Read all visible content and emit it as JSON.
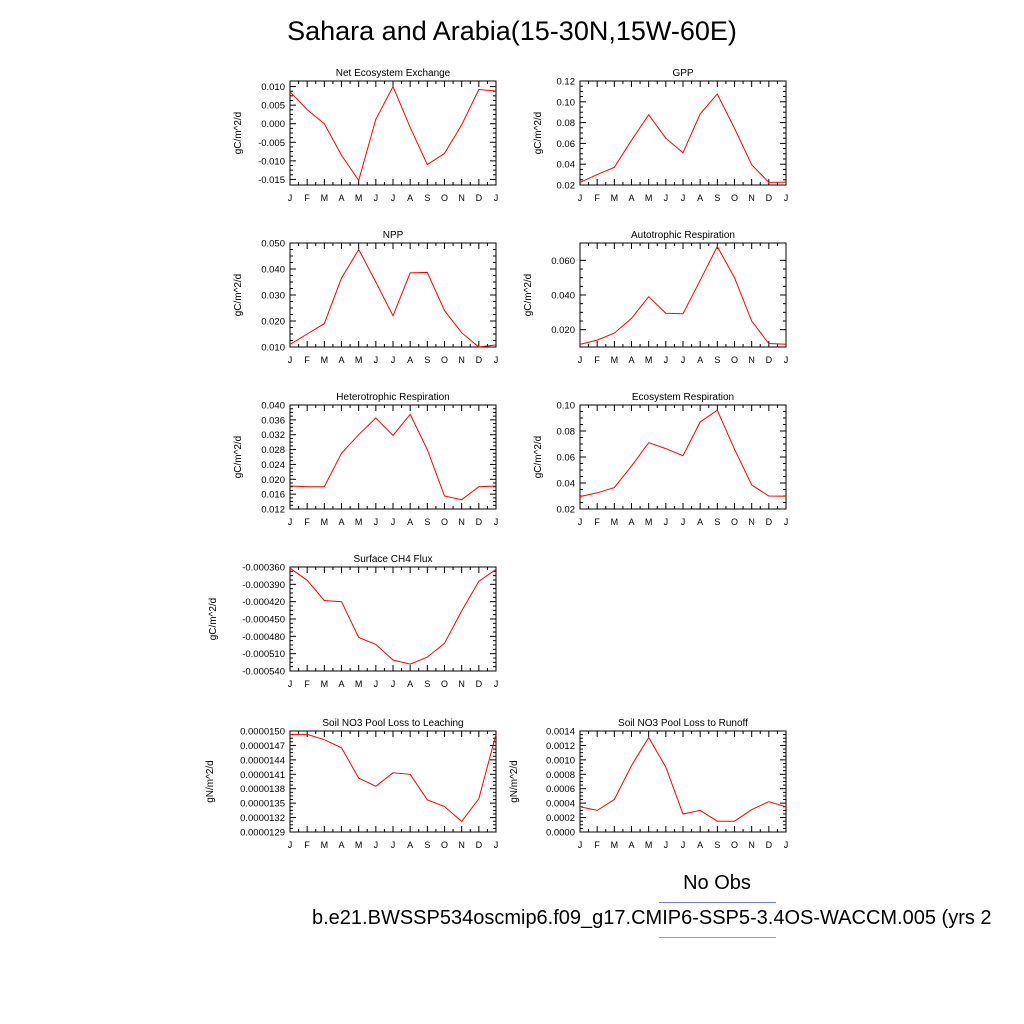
{
  "title": "Sahara and Arabia(15-30N,15W-60E)",
  "colors": {
    "series": "#ff0000",
    "axes": "#000000",
    "obs_line": "#7a7ae6",
    "model_line": "#f07a7a"
  },
  "legend": {
    "obs_label": "No Obs",
    "model_label": "b.e21.BWSSP534oscmip6.f09_g17.CMIP6-SSP5-3.4OS-WACCM.005 (yrs 2"
  },
  "chart_data": [
    {
      "type": "line",
      "title": "Net Ecosystem Exchange",
      "ylabel": "gC/m^2/d",
      "x": [
        "J",
        "F",
        "M",
        "A",
        "M",
        "J",
        "J",
        "A",
        "S",
        "O",
        "N",
        "D",
        "J"
      ],
      "ylim": [
        -0.0165,
        0.0115
      ],
      "yticks": [
        "0.010",
        "0.005",
        "0.000",
        "-0.005",
        "-0.010",
        "-0.015"
      ],
      "ytick_values": [
        0.01,
        0.005,
        0.0,
        -0.005,
        -0.01,
        -0.015
      ],
      "series": [
        {
          "values": [
            0.0086,
            0.0038,
            0.0,
            -0.0085,
            -0.0153,
            0.0012,
            0.01,
            -0.001,
            -0.011,
            -0.008,
            -0.0003,
            0.0092,
            0.0088
          ]
        }
      ]
    },
    {
      "type": "line",
      "title": "GPP",
      "ylabel": "gC/m^2/d",
      "x": [
        "J",
        "F",
        "M",
        "A",
        "M",
        "J",
        "J",
        "A",
        "S",
        "O",
        "N",
        "D",
        "J"
      ],
      "ylim": [
        0.02,
        0.12
      ],
      "yticks": [
        "0.12",
        "0.10",
        "0.08",
        "0.06",
        "0.04",
        "0.02"
      ],
      "ytick_values": [
        0.12,
        0.1,
        0.08,
        0.06,
        0.04,
        0.02
      ],
      "series": [
        {
          "values": [
            0.0225,
            0.03,
            0.037,
            0.063,
            0.0875,
            0.065,
            0.051,
            0.0885,
            0.1075,
            0.0745,
            0.0395,
            0.0225,
            0.0228
          ]
        }
      ]
    },
    {
      "type": "line",
      "title": "NPP",
      "ylabel": "gC/m^2/d",
      "x": [
        "J",
        "F",
        "M",
        "A",
        "M",
        "J",
        "J",
        "A",
        "S",
        "O",
        "N",
        "D",
        "J"
      ],
      "ylim": [
        0.01,
        0.05
      ],
      "yticks": [
        "0.050",
        "0.040",
        "0.030",
        "0.020",
        "0.010"
      ],
      "ytick_values": [
        0.05,
        0.04,
        0.03,
        0.02,
        0.01
      ],
      "series": [
        {
          "values": [
            0.011,
            0.015,
            0.019,
            0.0365,
            0.0475,
            0.035,
            0.022,
            0.0385,
            0.0387,
            0.024,
            0.0155,
            0.01,
            0.0108
          ]
        }
      ]
    },
    {
      "type": "line",
      "title": "Autotrophic Respiration",
      "ylabel": "gC/m^2/d",
      "x": [
        "J",
        "F",
        "M",
        "A",
        "M",
        "J",
        "J",
        "A",
        "S",
        "O",
        "N",
        "D",
        "J"
      ],
      "ylim": [
        0.01,
        0.07
      ],
      "yticks": [
        "0.060",
        "0.040",
        "0.020"
      ],
      "ytick_values": [
        0.06,
        0.04,
        0.02
      ],
      "series": [
        {
          "values": [
            0.0115,
            0.014,
            0.018,
            0.0265,
            0.039,
            0.0295,
            0.0292,
            0.0485,
            0.068,
            0.05,
            0.025,
            0.012,
            0.0116
          ]
        }
      ]
    },
    {
      "type": "line",
      "title": "Heterotrophic Respiration",
      "ylabel": "gC/m^2/d",
      "x": [
        "J",
        "F",
        "M",
        "A",
        "M",
        "J",
        "J",
        "A",
        "S",
        "O",
        "N",
        "D",
        "J"
      ],
      "ylim": [
        0.012,
        0.04
      ],
      "yticks": [
        "0.040",
        "0.036",
        "0.032",
        "0.028",
        "0.024",
        "0.020",
        "0.016",
        "0.012"
      ],
      "ytick_values": [
        0.04,
        0.036,
        0.032,
        0.028,
        0.024,
        0.02,
        0.016,
        0.012
      ],
      "series": [
        {
          "values": [
            0.0182,
            0.018,
            0.018,
            0.027,
            0.032,
            0.0365,
            0.0318,
            0.0375,
            0.028,
            0.0155,
            0.0145,
            0.018,
            0.0182
          ]
        }
      ]
    },
    {
      "type": "line",
      "title": "Ecosystem Respiration",
      "ylabel": "gC/m^2/d",
      "x": [
        "J",
        "F",
        "M",
        "A",
        "M",
        "J",
        "J",
        "A",
        "S",
        "O",
        "N",
        "D",
        "J"
      ],
      "ylim": [
        0.02,
        0.1
      ],
      "yticks": [
        "0.10",
        "0.08",
        "0.06",
        "0.04",
        "0.02"
      ],
      "ytick_values": [
        0.1,
        0.08,
        0.06,
        0.04,
        0.02
      ],
      "series": [
        {
          "values": [
            0.0295,
            0.0325,
            0.0365,
            0.053,
            0.071,
            0.0665,
            0.061,
            0.087,
            0.096,
            0.066,
            0.0385,
            0.03,
            0.0298
          ]
        }
      ]
    },
    {
      "type": "line",
      "title": "Surface CH4 Flux",
      "ylabel": "gC/m^2/d",
      "x": [
        "J",
        "F",
        "M",
        "A",
        "M",
        "J",
        "J",
        "A",
        "S",
        "O",
        "N",
        "D",
        "J"
      ],
      "ylim": [
        -0.00054,
        -0.00036
      ],
      "yticks": [
        "-0.000360",
        "-0.000390",
        "-0.000420",
        "-0.000450",
        "-0.000480",
        "-0.000510",
        "-0.000540"
      ],
      "ytick_values": [
        -0.00036,
        -0.00039,
        -0.00042,
        -0.00045,
        -0.00048,
        -0.00051,
        -0.00054
      ],
      "series": [
        {
          "values": [
            -0.000362,
            -0.000383,
            -0.000418,
            -0.00042,
            -0.000482,
            -0.000494,
            -0.000521,
            -0.000528,
            -0.000516,
            -0.000492,
            -0.000436,
            -0.000385,
            -0.000364
          ]
        }
      ]
    },
    {
      "type": "line",
      "title": "Soil NO3 Pool Loss to Leaching",
      "ylabel": "gN/m^2/d",
      "x": [
        "J",
        "F",
        "M",
        "A",
        "M",
        "J",
        "J",
        "A",
        "S",
        "O",
        "N",
        "D",
        "J"
      ],
      "ylim": [
        1.29e-05,
        1.5e-05
      ],
      "yticks": [
        "0.0000150",
        "0.0000147",
        "0.0000144",
        "0.0000141",
        "0.0000138",
        "0.0000135",
        "0.0000132",
        "0.0000129"
      ],
      "ytick_values": [
        1.5e-05,
        1.47e-05,
        1.44e-05,
        1.41e-05,
        1.38e-05,
        1.35e-05,
        1.32e-05,
        1.29e-05
      ],
      "series": [
        {
          "values": [
            1.493e-05,
            1.493e-05,
            1.482e-05,
            1.465e-05,
            1.402e-05,
            1.385e-05,
            1.413e-05,
            1.41e-05,
            1.357e-05,
            1.343e-05,
            1.312e-05,
            1.359e-05,
            1.493e-05
          ]
        }
      ]
    },
    {
      "type": "line",
      "title": "Soil NO3 Pool Loss to Runoff",
      "ylabel": "gN/m^2/d",
      "x": [
        "J",
        "F",
        "M",
        "A",
        "M",
        "J",
        "J",
        "A",
        "S",
        "O",
        "N",
        "D",
        "J"
      ],
      "ylim": [
        0.0,
        0.0014
      ],
      "yticks": [
        "0.0014",
        "0.0012",
        "0.0010",
        "0.0008",
        "0.0006",
        "0.0004",
        "0.0002",
        "0.0000"
      ],
      "ytick_values": [
        0.0014,
        0.0012,
        0.001,
        0.0008,
        0.0006,
        0.0004,
        0.0002,
        0.0
      ],
      "series": [
        {
          "values": [
            0.00035,
            0.0003,
            0.00045,
            0.00092,
            0.00131,
            0.0009,
            0.00025,
            0.0003,
            0.00015,
            0.00015,
            0.00031,
            0.00042,
            0.00035
          ]
        }
      ]
    }
  ]
}
